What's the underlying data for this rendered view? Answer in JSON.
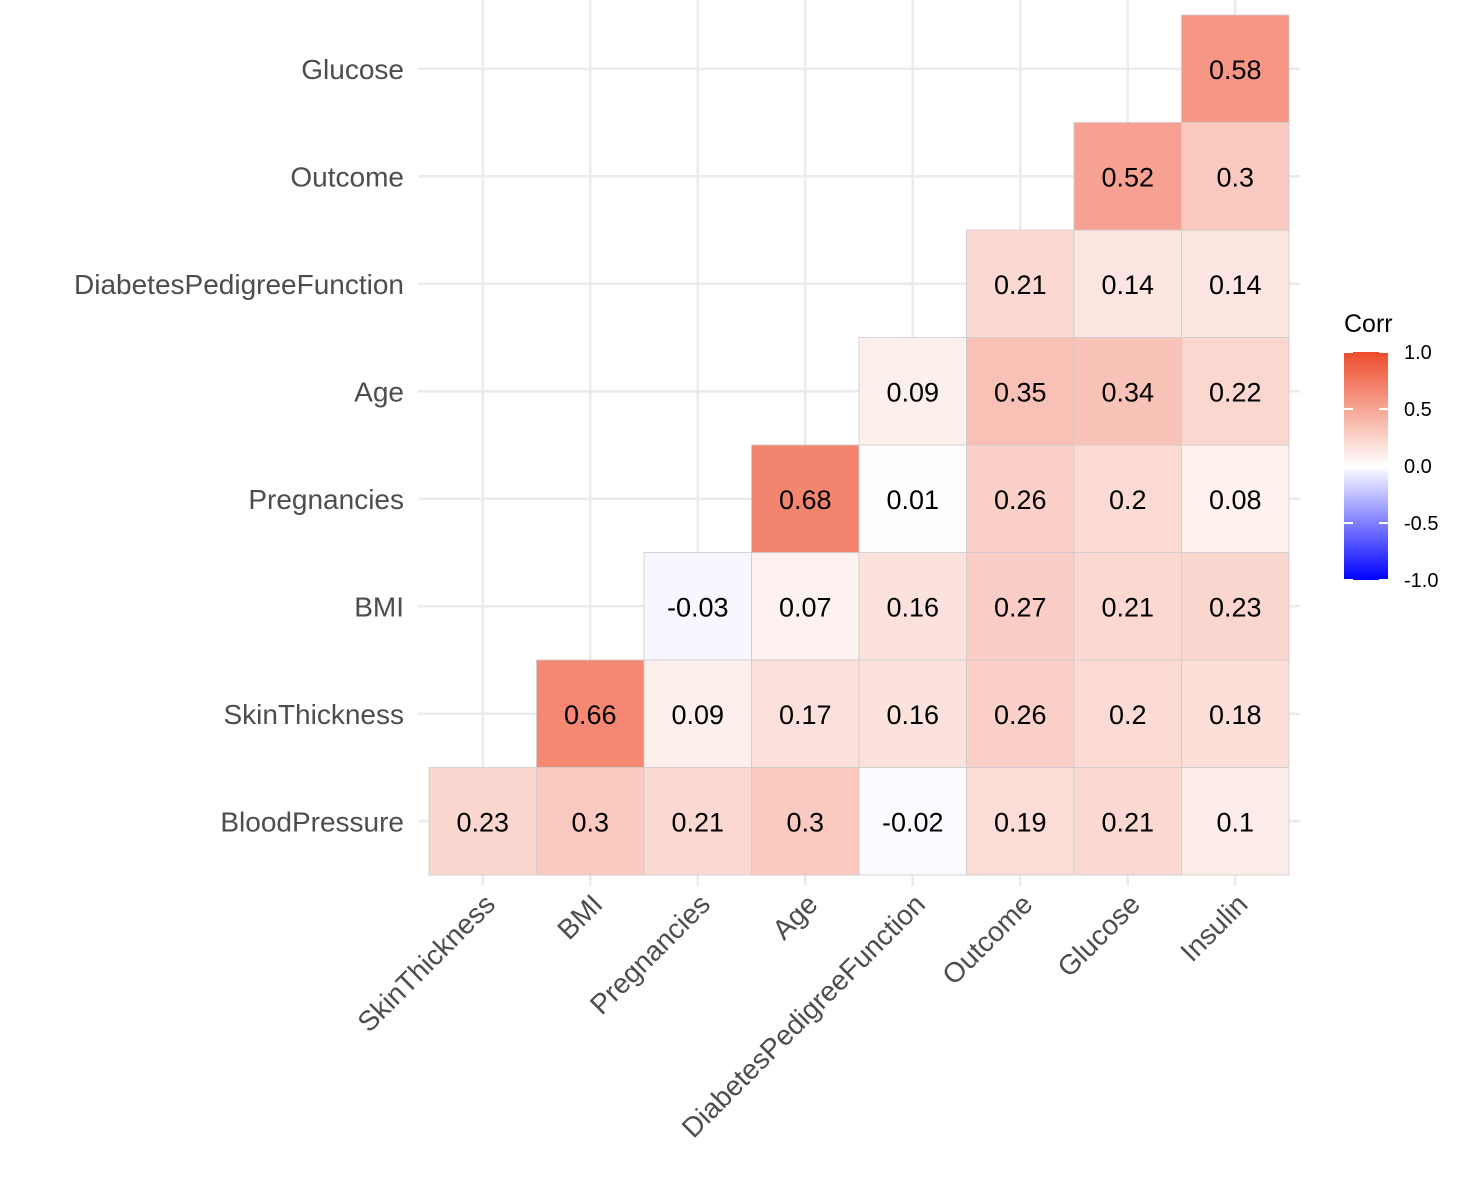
{
  "chart_data": {
    "type": "heatmap",
    "title": "",
    "xlabel": "",
    "ylabel": "",
    "x_categories": [
      "SkinThickness",
      "BMI",
      "Pregnancies",
      "Age",
      "DiabetesPedigreeFunction",
      "Outcome",
      "Glucose",
      "Insulin"
    ],
    "y_categories": [
      "BloodPressure",
      "SkinThickness",
      "BMI",
      "Pregnancies",
      "Age",
      "DiabetesPedigreeFunction",
      "Outcome",
      "Glucose"
    ],
    "cells": [
      {
        "x": "SkinThickness",
        "y": "BloodPressure",
        "value": 0.23,
        "label": "0.23"
      },
      {
        "x": "BMI",
        "y": "BloodPressure",
        "value": 0.3,
        "label": "0.3"
      },
      {
        "x": "Pregnancies",
        "y": "BloodPressure",
        "value": 0.21,
        "label": "0.21"
      },
      {
        "x": "Age",
        "y": "BloodPressure",
        "value": 0.3,
        "label": "0.3"
      },
      {
        "x": "DiabetesPedigreeFunction",
        "y": "BloodPressure",
        "value": -0.02,
        "label": "-0.02"
      },
      {
        "x": "Outcome",
        "y": "BloodPressure",
        "value": 0.19,
        "label": "0.19"
      },
      {
        "x": "Glucose",
        "y": "BloodPressure",
        "value": 0.21,
        "label": "0.21"
      },
      {
        "x": "Insulin",
        "y": "BloodPressure",
        "value": 0.1,
        "label": "0.1"
      },
      {
        "x": "BMI",
        "y": "SkinThickness",
        "value": 0.66,
        "label": "0.66"
      },
      {
        "x": "Pregnancies",
        "y": "SkinThickness",
        "value": 0.09,
        "label": "0.09"
      },
      {
        "x": "Age",
        "y": "SkinThickness",
        "value": 0.17,
        "label": "0.17"
      },
      {
        "x": "DiabetesPedigreeFunction",
        "y": "SkinThickness",
        "value": 0.16,
        "label": "0.16"
      },
      {
        "x": "Outcome",
        "y": "SkinThickness",
        "value": 0.26,
        "label": "0.26"
      },
      {
        "x": "Glucose",
        "y": "SkinThickness",
        "value": 0.2,
        "label": "0.2"
      },
      {
        "x": "Insulin",
        "y": "SkinThickness",
        "value": 0.18,
        "label": "0.18"
      },
      {
        "x": "Pregnancies",
        "y": "BMI",
        "value": -0.03,
        "label": "-0.03"
      },
      {
        "x": "Age",
        "y": "BMI",
        "value": 0.07,
        "label": "0.07"
      },
      {
        "x": "DiabetesPedigreeFunction",
        "y": "BMI",
        "value": 0.16,
        "label": "0.16"
      },
      {
        "x": "Outcome",
        "y": "BMI",
        "value": 0.27,
        "label": "0.27"
      },
      {
        "x": "Glucose",
        "y": "BMI",
        "value": 0.21,
        "label": "0.21"
      },
      {
        "x": "Insulin",
        "y": "BMI",
        "value": 0.23,
        "label": "0.23"
      },
      {
        "x": "Age",
        "y": "Pregnancies",
        "value": 0.68,
        "label": "0.68"
      },
      {
        "x": "DiabetesPedigreeFunction",
        "y": "Pregnancies",
        "value": 0.01,
        "label": "0.01"
      },
      {
        "x": "Outcome",
        "y": "Pregnancies",
        "value": 0.26,
        "label": "0.26"
      },
      {
        "x": "Glucose",
        "y": "Pregnancies",
        "value": 0.2,
        "label": "0.2"
      },
      {
        "x": "Insulin",
        "y": "Pregnancies",
        "value": 0.08,
        "label": "0.08"
      },
      {
        "x": "DiabetesPedigreeFunction",
        "y": "Age",
        "value": 0.09,
        "label": "0.09"
      },
      {
        "x": "Outcome",
        "y": "Age",
        "value": 0.35,
        "label": "0.35"
      },
      {
        "x": "Glucose",
        "y": "Age",
        "value": 0.34,
        "label": "0.34"
      },
      {
        "x": "Insulin",
        "y": "Age",
        "value": 0.22,
        "label": "0.22"
      },
      {
        "x": "Outcome",
        "y": "DiabetesPedigreeFunction",
        "value": 0.21,
        "label": "0.21"
      },
      {
        "x": "Glucose",
        "y": "DiabetesPedigreeFunction",
        "value": 0.14,
        "label": "0.14"
      },
      {
        "x": "Insulin",
        "y": "DiabetesPedigreeFunction",
        "value": 0.14,
        "label": "0.14"
      },
      {
        "x": "Glucose",
        "y": "Outcome",
        "value": 0.52,
        "label": "0.52"
      },
      {
        "x": "Insulin",
        "y": "Outcome",
        "value": 0.3,
        "label": "0.3"
      },
      {
        "x": "Insulin",
        "y": "Glucose",
        "value": 0.58,
        "label": "0.58"
      }
    ],
    "legend": {
      "title": "Corr",
      "range": [
        -1.0,
        1.0
      ],
      "ticks": [
        1.0,
        0.5,
        0.0,
        -0.5,
        -1.0
      ],
      "tick_labels": [
        "1.0",
        "0.5",
        "0.0",
        "-0.5",
        "-1.0"
      ],
      "placement": "right"
    },
    "colors": {
      "low": "#0000ff",
      "mid": "#ffffff",
      "high": "#ee4b2b",
      "grid": "#ebebeb",
      "tile_border": "#cccccc"
    },
    "grid": true
  }
}
